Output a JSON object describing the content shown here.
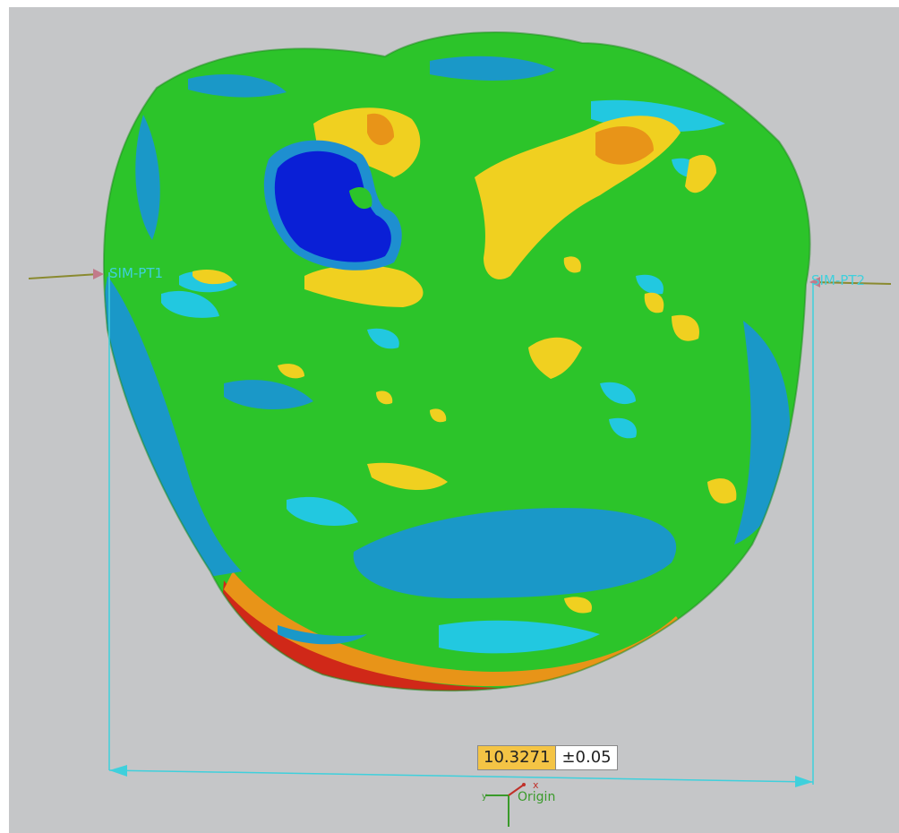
{
  "viewport": {
    "background": "#c5c6c8",
    "model": "tooth-deviation-colormap",
    "colormap": [
      "#0a1fd6",
      "#1e8fd0",
      "#22c8e0",
      "#2cc82c",
      "#f0d020",
      "#e89418",
      "#d02818"
    ]
  },
  "points": {
    "pt1_label": "SIM-PT1",
    "pt2_label": "SIM-PT2"
  },
  "dimension": {
    "value": "10.3271",
    "tolerance": "±0.05"
  },
  "triad": {
    "origin_label": "Origin",
    "x_label": "x",
    "y_label": "y"
  }
}
